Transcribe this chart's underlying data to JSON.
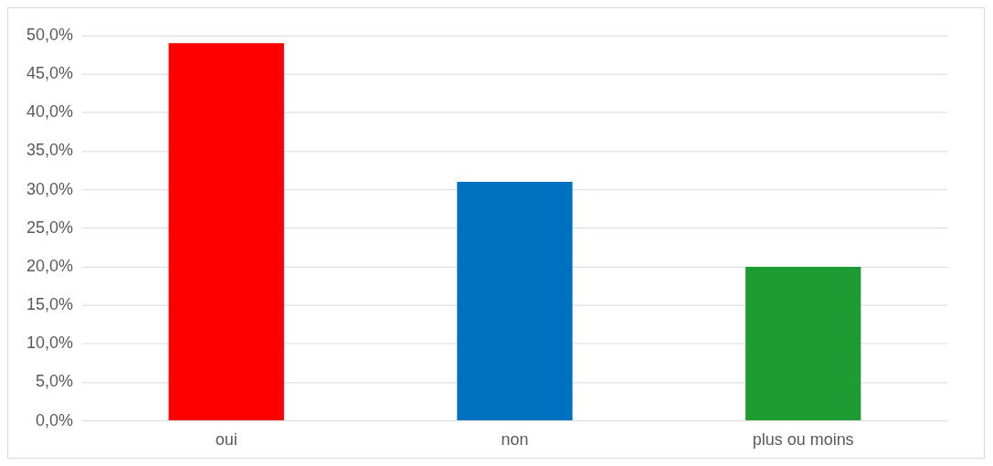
{
  "chart_data": {
    "type": "bar",
    "categories": [
      "oui",
      "non",
      "plus ou moins"
    ],
    "values": [
      49,
      31,
      20
    ],
    "colors": [
      "#ff0000",
      "#0070c0",
      "#1e9c33"
    ],
    "ylim": [
      0,
      50
    ],
    "yticks": [
      {
        "value": 0,
        "label": "0,0%"
      },
      {
        "value": 5,
        "label": "5,0%"
      },
      {
        "value": 10,
        "label": "10,0%"
      },
      {
        "value": 15,
        "label": "15,0%"
      },
      {
        "value": 20,
        "label": "20,0%"
      },
      {
        "value": 25,
        "label": "25,0%"
      },
      {
        "value": 30,
        "label": "30,0%"
      },
      {
        "value": 35,
        "label": "35,0%"
      },
      {
        "value": 40,
        "label": "40,0%"
      },
      {
        "value": 45,
        "label": "45,0%"
      },
      {
        "value": 50,
        "label": "50,0%"
      }
    ],
    "grid": "y",
    "legend": false
  }
}
